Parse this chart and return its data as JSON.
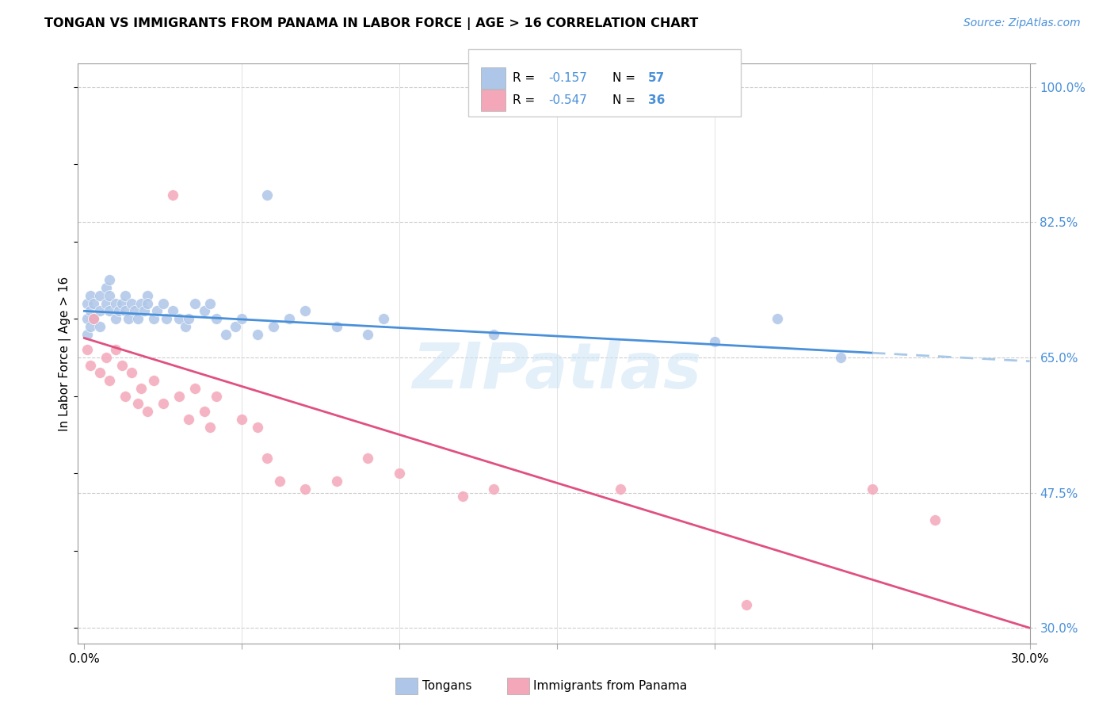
{
  "title": "TONGAN VS IMMIGRANTS FROM PANAMA IN LABOR FORCE | AGE > 16 CORRELATION CHART",
  "source": "Source: ZipAtlas.com",
  "ylabel": "In Labor Force | Age > 16",
  "xlim": [
    0.0,
    0.3
  ],
  "ylim": [
    0.28,
    1.03
  ],
  "xtick_positions": [
    0.0,
    0.05,
    0.1,
    0.15,
    0.2,
    0.25,
    0.3
  ],
  "xticklabels": [
    "0.0%",
    "",
    "",
    "",
    "",
    "",
    "30.0%"
  ],
  "ytick_right_labels": [
    "100.0%",
    "82.5%",
    "65.0%",
    "47.5%",
    "30.0%"
  ],
  "ytick_right_values": [
    1.0,
    0.825,
    0.65,
    0.475,
    0.3
  ],
  "blue_color": "#aec6e8",
  "pink_color": "#f4a7b9",
  "blue_line_color": "#4a90d9",
  "pink_line_color": "#e05080",
  "blue_line_dashed_color": "#a8c8e8",
  "watermark": "ZIPatlas",
  "legend_R_blue": "R =  -0.157",
  "legend_N_blue": "N = 57",
  "legend_R_pink": "R =  -0.547",
  "legend_N_pink": "N = 36",
  "tongans_x": [
    0.001,
    0.001,
    0.001,
    0.002,
    0.002,
    0.002,
    0.003,
    0.003,
    0.005,
    0.005,
    0.005,
    0.007,
    0.007,
    0.008,
    0.008,
    0.008,
    0.01,
    0.01,
    0.011,
    0.012,
    0.013,
    0.013,
    0.014,
    0.015,
    0.016,
    0.017,
    0.018,
    0.019,
    0.02,
    0.02,
    0.022,
    0.023,
    0.025,
    0.026,
    0.028,
    0.03,
    0.032,
    0.033,
    0.035,
    0.038,
    0.04,
    0.042,
    0.045,
    0.048,
    0.05,
    0.055,
    0.058,
    0.06,
    0.065,
    0.07,
    0.08,
    0.09,
    0.095,
    0.13,
    0.2,
    0.22,
    0.24
  ],
  "tongans_y": [
    0.72,
    0.7,
    0.68,
    0.73,
    0.71,
    0.69,
    0.72,
    0.7,
    0.73,
    0.71,
    0.69,
    0.74,
    0.72,
    0.75,
    0.73,
    0.71,
    0.72,
    0.7,
    0.71,
    0.72,
    0.73,
    0.71,
    0.7,
    0.72,
    0.71,
    0.7,
    0.72,
    0.71,
    0.73,
    0.72,
    0.7,
    0.71,
    0.72,
    0.7,
    0.71,
    0.7,
    0.69,
    0.7,
    0.72,
    0.71,
    0.72,
    0.7,
    0.68,
    0.69,
    0.7,
    0.68,
    0.86,
    0.69,
    0.7,
    0.71,
    0.69,
    0.68,
    0.7,
    0.68,
    0.67,
    0.7,
    0.65
  ],
  "panama_x": [
    0.001,
    0.002,
    0.003,
    0.005,
    0.007,
    0.008,
    0.01,
    0.012,
    0.013,
    0.015,
    0.017,
    0.018,
    0.02,
    0.022,
    0.025,
    0.028,
    0.03,
    0.033,
    0.035,
    0.038,
    0.04,
    0.042,
    0.05,
    0.055,
    0.058,
    0.062,
    0.07,
    0.08,
    0.09,
    0.1,
    0.12,
    0.13,
    0.17,
    0.21,
    0.25,
    0.27
  ],
  "panama_y": [
    0.66,
    0.64,
    0.7,
    0.63,
    0.65,
    0.62,
    0.66,
    0.64,
    0.6,
    0.63,
    0.59,
    0.61,
    0.58,
    0.62,
    0.59,
    0.86,
    0.6,
    0.57,
    0.61,
    0.58,
    0.56,
    0.6,
    0.57,
    0.56,
    0.52,
    0.49,
    0.48,
    0.49,
    0.52,
    0.5,
    0.47,
    0.48,
    0.48,
    0.33,
    0.48,
    0.44
  ]
}
